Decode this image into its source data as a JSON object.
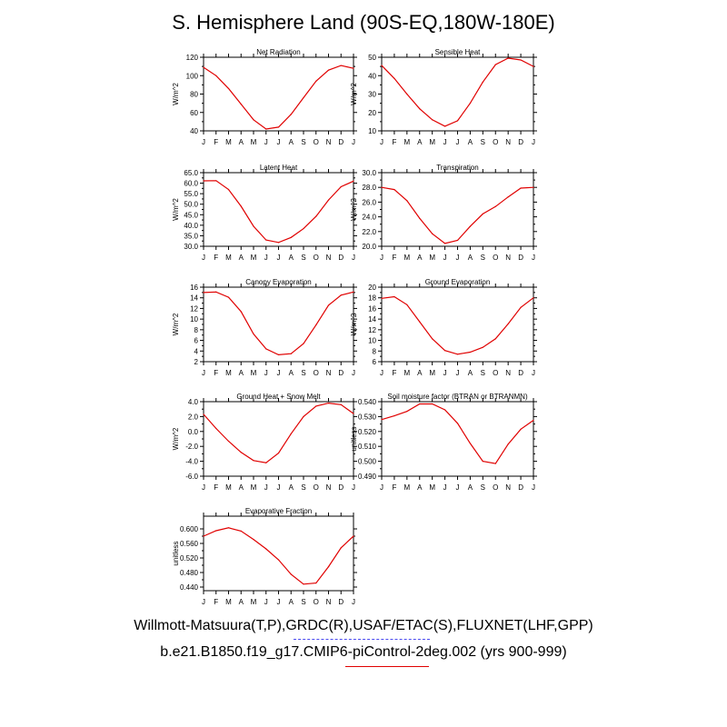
{
  "title": "S. Hemisphere Land (90S-EQ,180W-180E)",
  "captions": {
    "observations": "Willmott-Matsuura(T,P),GRDC(R),USAF/ETAC(S),FLUXNET(LHF,GPP)",
    "model": "b.e21.B1850.f19_g17.CMIP6-piControl-2deg.002 (yrs 900-999)"
  },
  "colors": {
    "model_line": "#e00000",
    "obs_line": "#4a4af0",
    "axes": "#000000"
  },
  "chart_data": [
    {
      "type": "line",
      "title": "Net Radiation",
      "ylabel": "W/m^2",
      "categories": [
        "J",
        "F",
        "M",
        "A",
        "M",
        "J",
        "J",
        "A",
        "S",
        "O",
        "N",
        "D",
        "J"
      ],
      "yticks": [
        "40",
        "60",
        "80",
        "100",
        "120"
      ],
      "ylim": [
        40,
        120
      ],
      "values": [
        109,
        100,
        86,
        69,
        52,
        42,
        44,
        58,
        76,
        94,
        106,
        111,
        108
      ]
    },
    {
      "type": "line",
      "title": "Sensible Heat",
      "ylabel": "W/m^2",
      "categories": [
        "J",
        "F",
        "M",
        "A",
        "M",
        "J",
        "J",
        "A",
        "S",
        "O",
        "N",
        "D",
        "J"
      ],
      "yticks": [
        "10",
        "20",
        "30",
        "40",
        "50"
      ],
      "ylim": [
        10,
        50
      ],
      "values": [
        45.5,
        38.5,
        30,
        22,
        16,
        12.5,
        15.5,
        25,
        36.5,
        46,
        49.5,
        48.5,
        45
      ]
    },
    {
      "type": "line",
      "title": "Latent Heat",
      "ylabel": "W/m^2",
      "categories": [
        "J",
        "F",
        "M",
        "A",
        "M",
        "J",
        "J",
        "A",
        "S",
        "O",
        "N",
        "D",
        "J"
      ],
      "yticks": [
        "30.0",
        "35.0",
        "40.0",
        "45.0",
        "50.0",
        "55.0",
        "60.0",
        "65.0"
      ],
      "ylim": [
        30,
        65
      ],
      "values": [
        61.1,
        61.2,
        57,
        49,
        39.5,
        33,
        31.8,
        34.2,
        38.4,
        44.2,
        52,
        58.3,
        61
      ]
    },
    {
      "type": "line",
      "title": "Transpiration",
      "ylabel": "W/m^2",
      "categories": [
        "J",
        "F",
        "M",
        "A",
        "M",
        "J",
        "J",
        "A",
        "S",
        "O",
        "N",
        "D",
        "J"
      ],
      "yticks": [
        "20.0",
        "22.0",
        "24.0",
        "26.0",
        "28.0",
        "30.0"
      ],
      "ylim": [
        20,
        30
      ],
      "values": [
        28,
        27.7,
        26.2,
        23.8,
        21.7,
        20.4,
        20.8,
        22.7,
        24.4,
        25.4,
        26.7,
        27.9,
        28
      ]
    },
    {
      "type": "line",
      "title": "Canopy Evaporation",
      "ylabel": "W/m^2",
      "categories": [
        "J",
        "F",
        "M",
        "A",
        "M",
        "J",
        "J",
        "A",
        "S",
        "O",
        "N",
        "D",
        "J"
      ],
      "yticks": [
        "2",
        "4",
        "6",
        "8",
        "10",
        "12",
        "14",
        "16"
      ],
      "ylim": [
        2,
        16
      ],
      "values": [
        15,
        15.1,
        14.1,
        11.4,
        7.2,
        4.4,
        3.3,
        3.5,
        5.4,
        8.9,
        12.6,
        14.5,
        15.1
      ]
    },
    {
      "type": "line",
      "title": "Ground Evaporation",
      "ylabel": "W/m^2",
      "categories": [
        "J",
        "F",
        "M",
        "A",
        "M",
        "J",
        "J",
        "A",
        "S",
        "O",
        "N",
        "D",
        "J"
      ],
      "yticks": [
        "6",
        "8",
        "10",
        "12",
        "14",
        "16",
        "18",
        "20"
      ],
      "ylim": [
        6,
        20
      ],
      "values": [
        17.9,
        18.2,
        16.7,
        13.5,
        10.3,
        8.1,
        7.4,
        7.8,
        8.7,
        10.3,
        13.1,
        16.2,
        18
      ]
    },
    {
      "type": "line",
      "title": "Ground Heat + Snow Melt",
      "ylabel": "W/m^2",
      "categories": [
        "J",
        "F",
        "M",
        "A",
        "M",
        "J",
        "J",
        "A",
        "S",
        "O",
        "N",
        "D",
        "J"
      ],
      "yticks": [
        "-6.0",
        "-4.0",
        "-2.0",
        "0.0",
        "2.0",
        "4.0"
      ],
      "ylim": [
        -6,
        4
      ],
      "values": [
        2.3,
        0.4,
        -1.3,
        -2.8,
        -3.9,
        -4.2,
        -2.9,
        -0.3,
        2,
        3.4,
        3.8,
        3.6,
        2.4
      ]
    },
    {
      "type": "line",
      "title": "Soil moisture factor (BTRAN or BTRANMN)",
      "ylabel": "unitless",
      "categories": [
        "J",
        "F",
        "M",
        "A",
        "M",
        "J",
        "J",
        "A",
        "S",
        "O",
        "N",
        "D",
        "J"
      ],
      "yticks": [
        "0.490",
        "0.500",
        "0.510",
        "0.520",
        "0.530",
        "0.540"
      ],
      "ylim": [
        0.49,
        0.54
      ],
      "values": [
        0.528,
        0.5305,
        0.5335,
        0.5385,
        0.5385,
        0.5345,
        0.5255,
        0.512,
        0.5,
        0.4985,
        0.5115,
        0.5215,
        0.5275
      ]
    },
    {
      "type": "line",
      "title": "Evaporative Fraction",
      "ylabel": "unitless",
      "categories": [
        "J",
        "F",
        "M",
        "A",
        "M",
        "J",
        "J",
        "A",
        "S",
        "O",
        "N",
        "D",
        "J"
      ],
      "yticks": [
        "0.440",
        "0.480",
        "0.520",
        "0.560",
        "0.600"
      ],
      "ylim": [
        0.43,
        0.635
      ],
      "values": [
        0.58,
        0.595,
        0.603,
        0.594,
        0.571,
        0.545,
        0.515,
        0.475,
        0.448,
        0.451,
        0.496,
        0.548,
        0.58
      ]
    }
  ]
}
